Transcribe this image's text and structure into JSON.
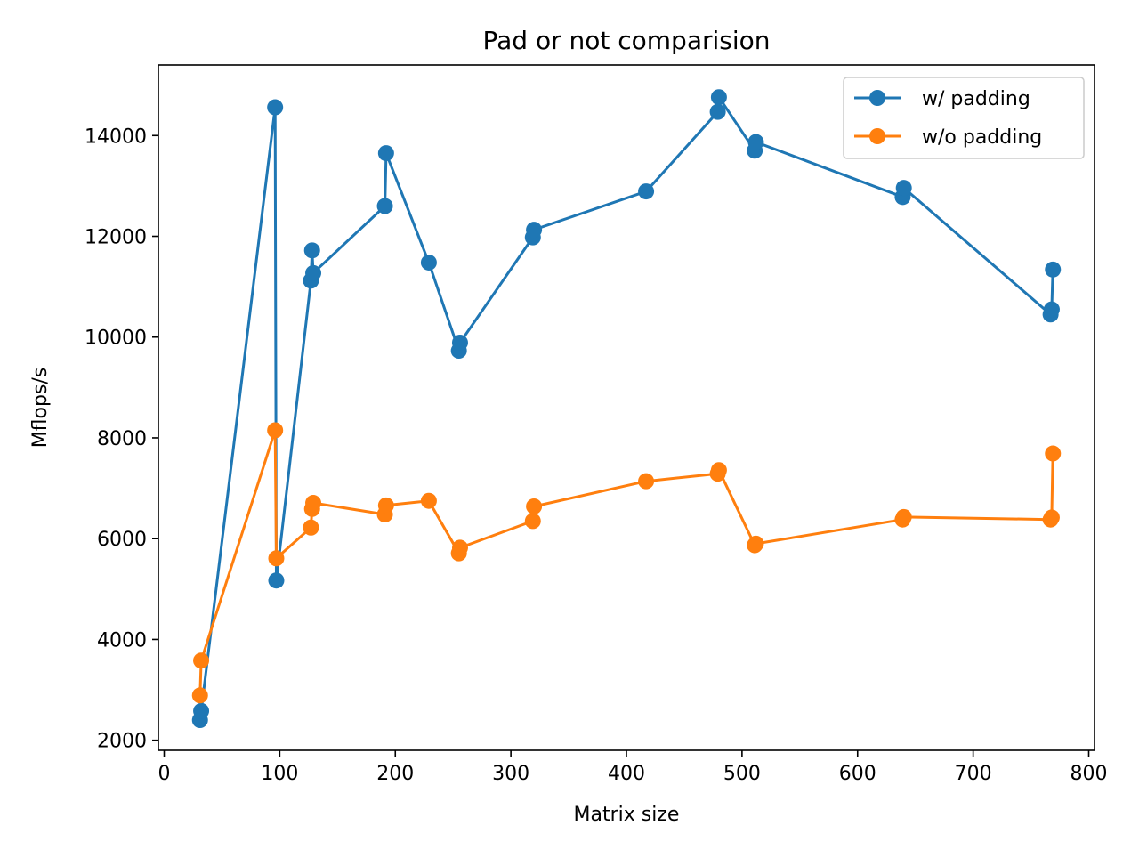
{
  "chart_data": {
    "type": "line",
    "title": "Pad or not comparision",
    "xlabel": "Matrix size",
    "ylabel": "Mflops/s",
    "xlim": [
      -5,
      805
    ],
    "ylim": [
      1800,
      15400
    ],
    "xticks": [
      0,
      100,
      200,
      300,
      400,
      500,
      600,
      700,
      800
    ],
    "yticks": [
      2000,
      4000,
      6000,
      8000,
      10000,
      12000,
      14000
    ],
    "xtick_labels": [
      "0",
      "100",
      "200",
      "300",
      "400",
      "500",
      "600",
      "700",
      "800"
    ],
    "ytick_labels": [
      "2000",
      "4000",
      "6000",
      "8000",
      "10000",
      "12000",
      "14000"
    ],
    "grid": false,
    "legend_position": "upper right",
    "series": [
      {
        "name": "w/ padding",
        "color": "#1f77b4",
        "marker": "circle",
        "x": [
          31,
          32,
          96,
          97,
          127,
          128,
          129,
          191,
          192,
          229,
          255,
          256,
          319,
          320,
          417,
          479,
          480,
          511,
          512,
          639,
          640,
          767,
          768,
          769
        ],
        "y": [
          2400,
          2580,
          14560,
          5170,
          11120,
          11720,
          11270,
          12600,
          13650,
          11480,
          9730,
          9890,
          11980,
          12130,
          12890,
          14470,
          14760,
          13700,
          13870,
          12780,
          12960,
          10450,
          10550,
          11340
        ]
      },
      {
        "name": "w/o padding",
        "color": "#ff7f0e",
        "marker": "circle",
        "x": [
          31,
          32,
          96,
          97,
          127,
          128,
          129,
          191,
          192,
          229,
          255,
          256,
          319,
          320,
          417,
          479,
          480,
          511,
          512,
          639,
          640,
          767,
          768,
          769
        ],
        "y": [
          2890,
          3580,
          8150,
          5610,
          6220,
          6590,
          6710,
          6480,
          6660,
          6750,
          5710,
          5820,
          6350,
          6640,
          7140,
          7290,
          7360,
          5870,
          5900,
          6380,
          6430,
          6380,
          6420,
          7690
        ]
      }
    ]
  }
}
